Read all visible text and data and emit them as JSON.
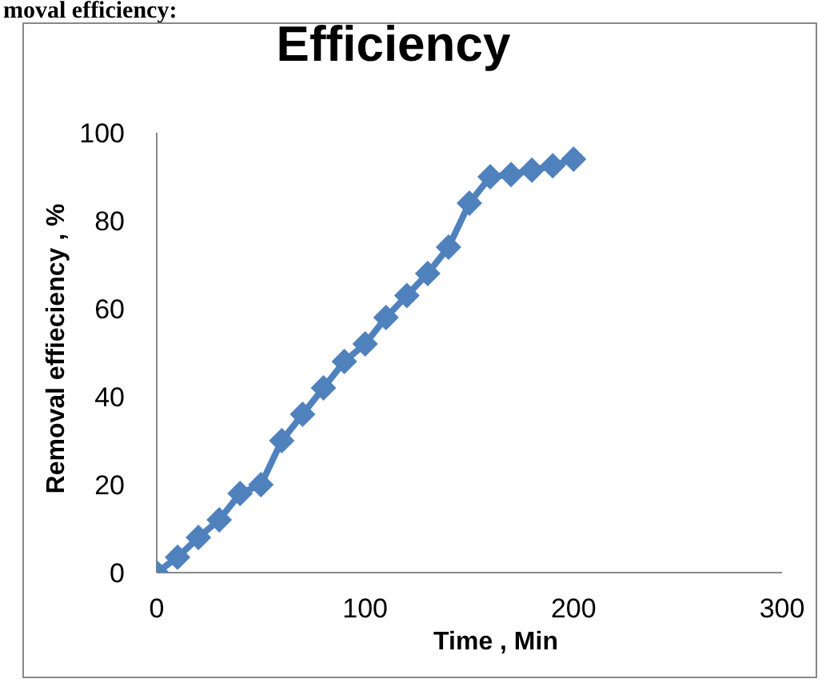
{
  "chart_data": {
    "type": "line",
    "title": "Efficiency",
    "xlabel": "Time , Min",
    "ylabel": "Removal effieciency , %",
    "annotations": [
      "moval efficiency:"
    ],
    "x": [
      0,
      10,
      20,
      30,
      40,
      50,
      60,
      70,
      80,
      90,
      100,
      110,
      120,
      130,
      140,
      150,
      160,
      170,
      180,
      190,
      200
    ],
    "series": [
      {
        "color": "#4f81bd",
        "values": [
          0,
          3.5,
          8,
          12,
          18,
          20,
          30,
          36,
          42,
          48,
          52,
          58,
          63,
          68,
          74,
          84,
          90,
          90.5,
          91.5,
          92.5,
          94
        ]
      }
    ],
    "xlim": [
      0,
      300
    ],
    "xticks": [
      0,
      100,
      200,
      300
    ],
    "ylim": [
      0,
      100
    ],
    "yticks": [
      0,
      20,
      40,
      60,
      80,
      100
    ],
    "grid": false,
    "legend": false,
    "marker": "diamond",
    "line_style": "solid"
  }
}
